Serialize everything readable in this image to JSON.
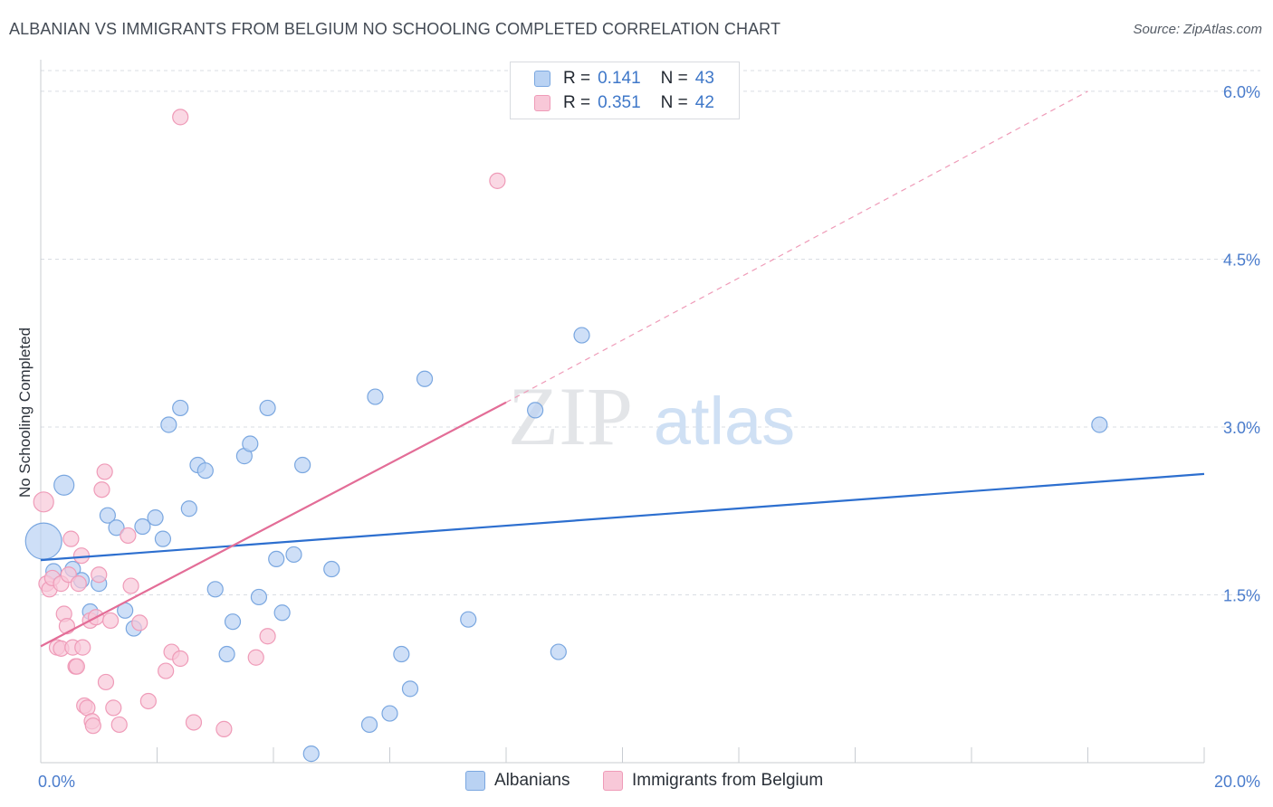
{
  "title": "ALBANIAN VS IMMIGRANTS FROM BELGIUM NO SCHOOLING COMPLETED CORRELATION CHART",
  "source": "Source: ZipAtlas.com",
  "watermark": {
    "zip": "ZIP",
    "atlas": "atlas"
  },
  "legend": {
    "r_label": "R =",
    "n_label": "N =",
    "rows": [
      {
        "r": "0.141",
        "n": "43"
      },
      {
        "r": "0.351",
        "n": "42"
      }
    ]
  },
  "colors": {
    "blue_fill": "#b9d2f3",
    "blue_stroke": "#7aa7e0",
    "blue_line": "#2d6fcf",
    "pink_fill": "#f8c8d8",
    "pink_stroke": "#ef9bb8",
    "pink_line": "#e36d97",
    "axis_text": "#4a7ccc",
    "grid": "#d9dde3"
  },
  "chart_data": {
    "type": "scatter",
    "title": "ALBANIAN VS IMMIGRANTS FROM BELGIUM NO SCHOOLING COMPLETED CORRELATION CHART",
    "xlabel": "",
    "ylabel": "No Schooling Completed",
    "xlim": [
      0,
      20
    ],
    "ylim": [
      0,
      6.25
    ],
    "x_ticks": [
      0,
      2,
      4,
      6,
      8,
      10,
      12,
      14,
      16,
      18,
      20
    ],
    "x_tick_labels": {
      "0": "0.0%",
      "20": "20.0%"
    },
    "y_ticks": [
      1.5,
      3.0,
      4.5,
      6.0
    ],
    "y_tick_labels": [
      "1.5%",
      "3.0%",
      "4.5%",
      "6.0%"
    ],
    "grid": true,
    "series": [
      {
        "name": "Albanians",
        "color": "#b9d2f3",
        "trend": {
          "x": [
            0,
            20
          ],
          "y": [
            1.81,
            2.58
          ]
        },
        "points": [
          {
            "x": 0.05,
            "y": 1.98,
            "big": 2
          },
          {
            "x": 0.4,
            "y": 2.48,
            "big": 1
          },
          {
            "x": 0.22,
            "y": 1.71
          },
          {
            "x": 0.55,
            "y": 1.73
          },
          {
            "x": 0.7,
            "y": 1.63
          },
          {
            "x": 1.0,
            "y": 1.6
          },
          {
            "x": 1.15,
            "y": 2.21
          },
          {
            "x": 1.3,
            "y": 2.1
          },
          {
            "x": 0.85,
            "y": 1.35
          },
          {
            "x": 1.45,
            "y": 1.36
          },
          {
            "x": 1.6,
            "y": 1.2
          },
          {
            "x": 1.75,
            "y": 2.11
          },
          {
            "x": 1.97,
            "y": 2.19
          },
          {
            "x": 2.1,
            "y": 2.0
          },
          {
            "x": 2.2,
            "y": 3.02
          },
          {
            "x": 2.4,
            "y": 3.17
          },
          {
            "x": 2.55,
            "y": 2.27
          },
          {
            "x": 2.7,
            "y": 2.66
          },
          {
            "x": 2.83,
            "y": 2.61
          },
          {
            "x": 3.0,
            "y": 1.55
          },
          {
            "x": 3.2,
            "y": 0.97
          },
          {
            "x": 3.3,
            "y": 1.26
          },
          {
            "x": 3.5,
            "y": 2.74
          },
          {
            "x": 3.6,
            "y": 2.85
          },
          {
            "x": 3.75,
            "y": 1.48
          },
          {
            "x": 3.9,
            "y": 3.17
          },
          {
            "x": 4.05,
            "y": 1.82
          },
          {
            "x": 4.15,
            "y": 1.34
          },
          {
            "x": 4.35,
            "y": 1.86
          },
          {
            "x": 4.5,
            "y": 2.66
          },
          {
            "x": 4.65,
            "y": 0.08
          },
          {
            "x": 5.0,
            "y": 1.73
          },
          {
            "x": 5.65,
            "y": 0.34
          },
          {
            "x": 5.75,
            "y": 3.27
          },
          {
            "x": 6.0,
            "y": 0.44
          },
          {
            "x": 6.2,
            "y": 0.97
          },
          {
            "x": 6.35,
            "y": 0.66
          },
          {
            "x": 6.6,
            "y": 3.43
          },
          {
            "x": 7.35,
            "y": 1.28
          },
          {
            "x": 8.5,
            "y": 3.15
          },
          {
            "x": 8.9,
            "y": 0.99
          },
          {
            "x": 9.3,
            "y": 3.82
          },
          {
            "x": 18.2,
            "y": 3.02
          }
        ]
      },
      {
        "name": "Immigrants from Belgium",
        "color": "#f8c8d8",
        "trend": {
          "x": [
            0,
            8.0
          ],
          "y": [
            1.04,
            3.22
          ]
        },
        "trend_ext": {
          "x": [
            8.0,
            18.0
          ],
          "y": [
            3.22,
            6.0
          ]
        },
        "points": [
          {
            "x": 0.05,
            "y": 2.33,
            "big": 1
          },
          {
            "x": 0.1,
            "y": 1.6
          },
          {
            "x": 0.15,
            "y": 1.55
          },
          {
            "x": 0.2,
            "y": 1.65
          },
          {
            "x": 0.28,
            "y": 1.03
          },
          {
            "x": 0.35,
            "y": 1.02
          },
          {
            "x": 0.35,
            "y": 1.6
          },
          {
            "x": 0.4,
            "y": 1.33
          },
          {
            "x": 0.45,
            "y": 1.22
          },
          {
            "x": 0.48,
            "y": 1.68
          },
          {
            "x": 0.52,
            "y": 2.0
          },
          {
            "x": 0.55,
            "y": 1.03
          },
          {
            "x": 0.6,
            "y": 0.86
          },
          {
            "x": 0.62,
            "y": 0.86
          },
          {
            "x": 0.65,
            "y": 1.6
          },
          {
            "x": 0.7,
            "y": 1.85
          },
          {
            "x": 0.72,
            "y": 1.03
          },
          {
            "x": 0.75,
            "y": 0.51
          },
          {
            "x": 0.8,
            "y": 0.49
          },
          {
            "x": 0.85,
            "y": 1.27
          },
          {
            "x": 0.88,
            "y": 0.37
          },
          {
            "x": 0.9,
            "y": 0.33
          },
          {
            "x": 0.95,
            "y": 1.3
          },
          {
            "x": 1.0,
            "y": 1.68
          },
          {
            "x": 1.05,
            "y": 2.44
          },
          {
            "x": 1.1,
            "y": 2.6
          },
          {
            "x": 1.12,
            "y": 0.72
          },
          {
            "x": 1.2,
            "y": 1.27
          },
          {
            "x": 1.25,
            "y": 0.49
          },
          {
            "x": 1.35,
            "y": 0.34
          },
          {
            "x": 1.5,
            "y": 2.03
          },
          {
            "x": 1.55,
            "y": 1.58
          },
          {
            "x": 1.7,
            "y": 1.25
          },
          {
            "x": 1.85,
            "y": 0.55
          },
          {
            "x": 2.15,
            "y": 0.82
          },
          {
            "x": 2.25,
            "y": 0.99
          },
          {
            "x": 2.4,
            "y": 0.93
          },
          {
            "x": 2.63,
            "y": 0.36
          },
          {
            "x": 3.15,
            "y": 0.3
          },
          {
            "x": 3.7,
            "y": 0.94
          },
          {
            "x": 3.9,
            "y": 1.13
          },
          {
            "x": 2.4,
            "y": 5.77
          },
          {
            "x": 7.85,
            "y": 5.2
          }
        ]
      }
    ]
  }
}
